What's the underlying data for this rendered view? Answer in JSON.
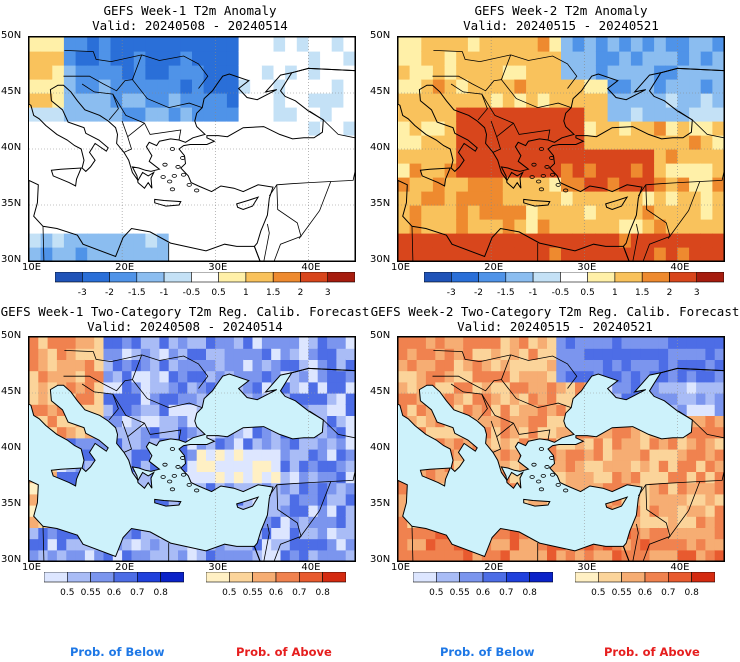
{
  "panels": [
    {
      "id": "p1",
      "title_line1": "GEFS Week-1 T2m Anomaly",
      "title_line2": "Valid: 20240508 - 20240514",
      "lat_ticks": [
        "50N",
        "45N",
        "40N",
        "35N",
        "30N"
      ],
      "lon_ticks": [
        "10E",
        "20E",
        "30E",
        "40E"
      ],
      "colorbar": {
        "type": "diverging",
        "labels": [
          "-3",
          "-2",
          "-1.5",
          "-1",
          "-0.5",
          "0.5",
          "1",
          "1.5",
          "2",
          "3"
        ],
        "colors": [
          "#1f53b8",
          "#2a6fd8",
          "#4f93e8",
          "#8bbdf0",
          "#c4e1f6",
          "#ffffff",
          "#fff0a8",
          "#f9c25c",
          "#ee8a2f",
          "#d8461c",
          "#a61c0e"
        ]
      },
      "field_theme": "cool"
    },
    {
      "id": "p2",
      "title_line1": "GEFS Week-2 T2m Anomaly",
      "title_line2": "Valid: 20240515 - 20240521",
      "lat_ticks": [
        "50N",
        "45N",
        "40N",
        "35N",
        "30N"
      ],
      "lon_ticks": [
        "10E",
        "20E",
        "30E",
        "40E"
      ],
      "colorbar": {
        "type": "diverging",
        "labels": [
          "-3",
          "-2",
          "-1.5",
          "-1",
          "-0.5",
          "0.5",
          "1",
          "1.5",
          "2",
          "3"
        ],
        "colors": [
          "#1f53b8",
          "#2a6fd8",
          "#4f93e8",
          "#8bbdf0",
          "#c4e1f6",
          "#ffffff",
          "#fff0a8",
          "#f9c25c",
          "#ee8a2f",
          "#d8461c",
          "#a61c0e"
        ]
      },
      "field_theme": "warm"
    },
    {
      "id": "p3",
      "title_line1": "GEFS Week-1 Two-Category T2m Reg. Calib. Forecast",
      "title_line2": "Valid: 20240508 - 20240514",
      "lat_ticks": [
        "50N",
        "45N",
        "40N",
        "35N",
        "30N"
      ],
      "lon_ticks": [
        "10E",
        "20E",
        "30E",
        "40E"
      ],
      "below_bar": {
        "labels": [
          "0.5",
          "0.55",
          "0.6",
          "0.7",
          "0.8"
        ],
        "colors": [
          "#dde6ff",
          "#a9bcf6",
          "#7b95ee",
          "#4d6de6",
          "#1f40dc",
          "#0a22c8"
        ]
      },
      "above_bar": {
        "labels": [
          "0.5",
          "0.55",
          "0.6",
          "0.7",
          "0.8"
        ],
        "colors": [
          "#fff0c4",
          "#fbd49a",
          "#f6ad73",
          "#f0824f",
          "#e85a2f",
          "#d42a10"
        ]
      },
      "legend_below": "Prob. of Below",
      "legend_above": "Prob. of Above",
      "field_theme": "prob-cool"
    },
    {
      "id": "p4",
      "title_line1": "GEFS Week-2 Two-Category T2m Reg. Calib. Forecast",
      "title_line2": "Valid: 20240515 - 20240521",
      "lat_ticks": [
        "50N",
        "45N",
        "40N",
        "35N",
        "30N"
      ],
      "lon_ticks": [
        "10E",
        "20E",
        "30E",
        "40E"
      ],
      "below_bar": {
        "labels": [
          "0.5",
          "0.55",
          "0.6",
          "0.7",
          "0.8"
        ],
        "colors": [
          "#dde6ff",
          "#a9bcf6",
          "#7b95ee",
          "#4d6de6",
          "#1f40dc",
          "#0a22c8"
        ]
      },
      "above_bar": {
        "labels": [
          "0.5",
          "0.55",
          "0.6",
          "0.7",
          "0.8"
        ],
        "colors": [
          "#fff0c4",
          "#fbd49a",
          "#f6ad73",
          "#f0824f",
          "#e85a2f",
          "#d42a10"
        ]
      },
      "legend_below": "Prob. of Below",
      "legend_above": "Prob. of Above",
      "field_theme": "prob-warm"
    }
  ],
  "colors": {
    "sea_prob": "#cdf2fb",
    "coast": "#000000",
    "legend_below": "#1e78e6",
    "legend_above": "#e61e1e"
  }
}
